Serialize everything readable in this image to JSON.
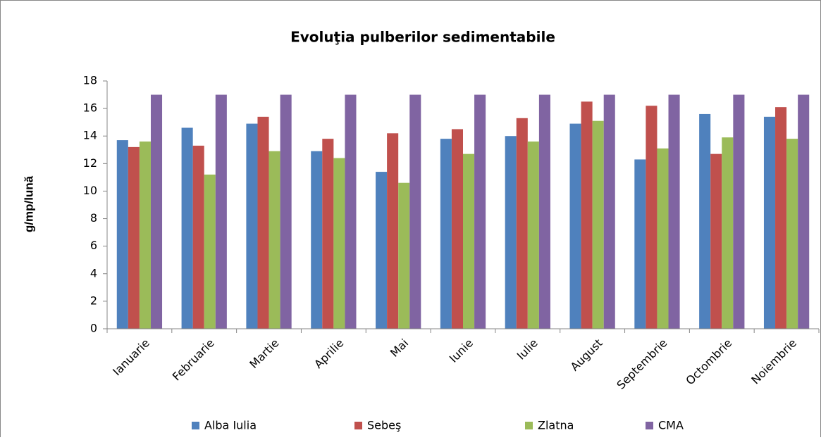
{
  "chart_data": {
    "type": "bar",
    "title": "Evoluţia pulberilor sedimentabile",
    "y_label": "g/mp/lună",
    "categories": [
      "Ianuarie",
      "Februarie",
      "Martie",
      "Aprilie",
      "Mai",
      "Iunie",
      "Iulie",
      "August",
      "Septembrie",
      "Octombrie",
      "Noiembrie"
    ],
    "series": [
      {
        "name": "Alba Iulia",
        "color": "#4f81bd",
        "values": [
          13.7,
          14.6,
          14.9,
          12.9,
          11.4,
          13.8,
          14.0,
          14.9,
          12.3,
          15.6,
          15.4
        ]
      },
      {
        "name": "Sebeş",
        "color": "#c0504d",
        "values": [
          13.2,
          13.3,
          15.4,
          13.8,
          14.2,
          14.5,
          15.3,
          16.5,
          16.2,
          12.7,
          16.1
        ]
      },
      {
        "name": "Zlatna",
        "color": "#9bbb59",
        "values": [
          13.6,
          11.2,
          12.9,
          12.4,
          10.6,
          12.7,
          13.6,
          15.1,
          13.1,
          13.9,
          13.8
        ]
      },
      {
        "name": "CMA",
        "color": "#8064a2",
        "values": [
          17,
          17,
          17,
          17,
          17,
          17,
          17,
          17,
          17,
          17,
          17
        ]
      }
    ],
    "ylim": [
      0,
      18
    ],
    "yticks": [
      0,
      2,
      4,
      6,
      8,
      10,
      12,
      14,
      16,
      18
    ],
    "grid": false,
    "legend": "bottom"
  }
}
